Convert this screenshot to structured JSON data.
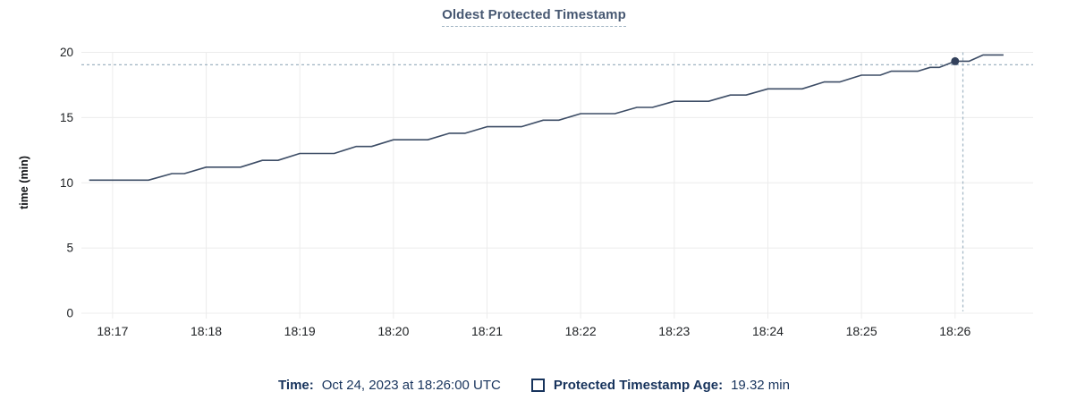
{
  "title": "Oldest Protected Timestamp",
  "colors": {
    "navy": "#17335c",
    "title": "#475872",
    "line": "#3d4d66",
    "dot": "#33415c",
    "grid": "#ececec",
    "crosshair": "#9fb3c2",
    "axis-text": "#202326",
    "bg": "#ffffff"
  },
  "chart_data": {
    "type": "line",
    "title": "Oldest Protected Timestamp",
    "xlabel": "",
    "ylabel": "time (min)",
    "ylim": [
      0,
      20
    ],
    "y_ticks": [
      0,
      5,
      10,
      15,
      20
    ],
    "x_ticks": [
      "18:17",
      "18:18",
      "18:19",
      "18:20",
      "18:21",
      "18:22",
      "18:23",
      "18:24",
      "18:25",
      "18:26"
    ],
    "x_domain": [
      "18:16:40",
      "18:26:50"
    ],
    "grid": true,
    "legend_position": "bottom",
    "series": [
      {
        "name": "Protected Timestamp Age",
        "unit": "min",
        "points": [
          [
            "18:16:45",
            10.2
          ],
          [
            "18:17:23",
            10.2
          ],
          [
            "18:17:38",
            10.7
          ],
          [
            "18:17:46",
            10.7
          ],
          [
            "18:18:00",
            11.2
          ],
          [
            "18:18:22",
            11.2
          ],
          [
            "18:18:36",
            11.72
          ],
          [
            "18:18:46",
            11.72
          ],
          [
            "18:19:00",
            12.25
          ],
          [
            "18:19:22",
            12.25
          ],
          [
            "18:19:36",
            12.78
          ],
          [
            "18:19:46",
            12.78
          ],
          [
            "18:20:00",
            13.3
          ],
          [
            "18:20:22",
            13.3
          ],
          [
            "18:20:36",
            13.8
          ],
          [
            "18:20:46",
            13.8
          ],
          [
            "18:21:00",
            14.3
          ],
          [
            "18:21:22",
            14.3
          ],
          [
            "18:21:36",
            14.8
          ],
          [
            "18:21:46",
            14.8
          ],
          [
            "18:22:00",
            15.3
          ],
          [
            "18:22:22",
            15.3
          ],
          [
            "18:22:36",
            15.78
          ],
          [
            "18:22:46",
            15.78
          ],
          [
            "18:23:00",
            16.25
          ],
          [
            "18:23:22",
            16.25
          ],
          [
            "18:23:36",
            16.73
          ],
          [
            "18:23:46",
            16.73
          ],
          [
            "18:24:00",
            17.2
          ],
          [
            "18:24:22",
            17.2
          ],
          [
            "18:24:36",
            17.73
          ],
          [
            "18:24:46",
            17.73
          ],
          [
            "18:25:00",
            18.25
          ],
          [
            "18:25:12",
            18.25
          ],
          [
            "18:25:19",
            18.55
          ],
          [
            "18:25:36",
            18.55
          ],
          [
            "18:25:44",
            18.85
          ],
          [
            "18:25:50",
            18.85
          ],
          [
            "18:26:00",
            19.32
          ],
          [
            "18:26:09",
            19.32
          ],
          [
            "18:26:18",
            19.8
          ],
          [
            "18:26:31",
            19.8
          ]
        ]
      }
    ],
    "highlight_point": {
      "time": "18:26:00",
      "value": 19.32
    },
    "crosshair": {
      "time": "18:26:05",
      "value": 19.05
    }
  },
  "legend": {
    "time_label": "Time:",
    "time_value": "Oct 24, 2023 at 18:26:00 UTC",
    "series_label": "Protected Timestamp Age:",
    "series_value": "19.32 min"
  }
}
